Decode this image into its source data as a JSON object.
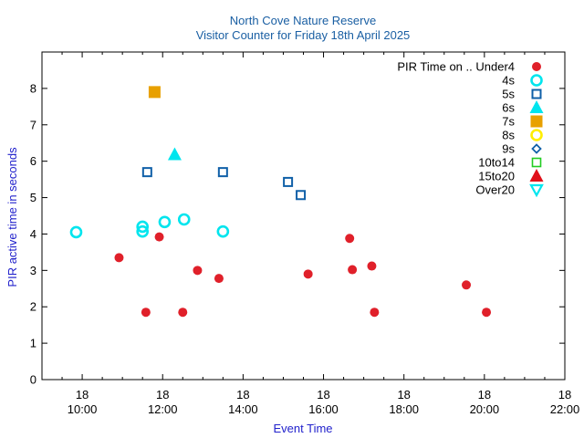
{
  "chart_data": {
    "type": "scatter",
    "title": "North Cove Nature Reserve",
    "subtitle": "Visitor Counter for Friday 18th April 2025",
    "xlabel": "Event Time",
    "ylabel": "PIR active time in seconds",
    "legend_title": "PIR Time on ..",
    "legend_position": "top-right",
    "xlim": [
      "09:00",
      "22:00"
    ],
    "ylim": [
      0,
      9
    ],
    "x_ticks": [
      {
        "time": "10:00",
        "day": "18"
      },
      {
        "time": "12:00",
        "day": "18"
      },
      {
        "time": "14:00",
        "day": "18"
      },
      {
        "time": "16:00",
        "day": "18"
      },
      {
        "time": "18:00",
        "day": "18"
      },
      {
        "time": "20:00",
        "day": "18"
      },
      {
        "time": "22:00",
        "day": "18"
      }
    ],
    "y_ticks": [
      "0",
      "1",
      "2",
      "3",
      "4",
      "5",
      "6",
      "7",
      "8"
    ],
    "grid": false,
    "series": [
      {
        "name": "Under4",
        "marker": "circle-filled",
        "color": "#e0202a",
        "points": [
          {
            "x": "10:55",
            "y": 3.35
          },
          {
            "x": "11:35",
            "y": 1.85
          },
          {
            "x": "11:55",
            "y": 3.92
          },
          {
            "x": "12:30",
            "y": 1.85
          },
          {
            "x": "12:52",
            "y": 3.0
          },
          {
            "x": "13:24",
            "y": 2.78
          },
          {
            "x": "15:37",
            "y": 2.9
          },
          {
            "x": "16:39",
            "y": 3.88
          },
          {
            "x": "16:43",
            "y": 3.02
          },
          {
            "x": "17:12",
            "y": 3.12
          },
          {
            "x": "17:16",
            "y": 1.85
          },
          {
            "x": "19:33",
            "y": 2.6
          },
          {
            "x": "20:03",
            "y": 1.85
          }
        ]
      },
      {
        "name": "4s",
        "marker": "circle-open",
        "color": "#00e5ee",
        "points": [
          {
            "x": "09:51",
            "y": 4.05
          },
          {
            "x": "11:30",
            "y": 4.2
          },
          {
            "x": "11:30",
            "y": 4.07
          },
          {
            "x": "12:03",
            "y": 4.33
          },
          {
            "x": "12:32",
            "y": 4.4
          },
          {
            "x": "13:30",
            "y": 4.07
          }
        ]
      },
      {
        "name": "5s",
        "marker": "square-open",
        "color": "#1060a8",
        "points": [
          {
            "x": "11:37",
            "y": 5.7
          },
          {
            "x": "13:30",
            "y": 5.7
          },
          {
            "x": "15:07",
            "y": 5.43
          },
          {
            "x": "15:26",
            "y": 5.07
          }
        ]
      },
      {
        "name": "6s",
        "marker": "triangle-up-filled",
        "color": "#00e5ee",
        "points": [
          {
            "x": "12:18",
            "y": 6.18
          }
        ]
      },
      {
        "name": "7s",
        "marker": "square-filled",
        "color": "#e8a000",
        "points": [
          {
            "x": "11:48",
            "y": 7.9
          }
        ]
      },
      {
        "name": "8s",
        "marker": "circle-open-thick",
        "color": "#ffee00",
        "points": []
      },
      {
        "name": "9s",
        "marker": "diamond-open",
        "color": "#1060a8",
        "points": []
      },
      {
        "name": "10to14",
        "marker": "square-open-small",
        "color": "#22cc22",
        "points": []
      },
      {
        "name": "15to20",
        "marker": "triangle-up-filled",
        "color": "#e0101a",
        "points": []
      },
      {
        "name": "Over20",
        "marker": "triangle-down-open",
        "color": "#00e5ee",
        "points": []
      }
    ]
  }
}
